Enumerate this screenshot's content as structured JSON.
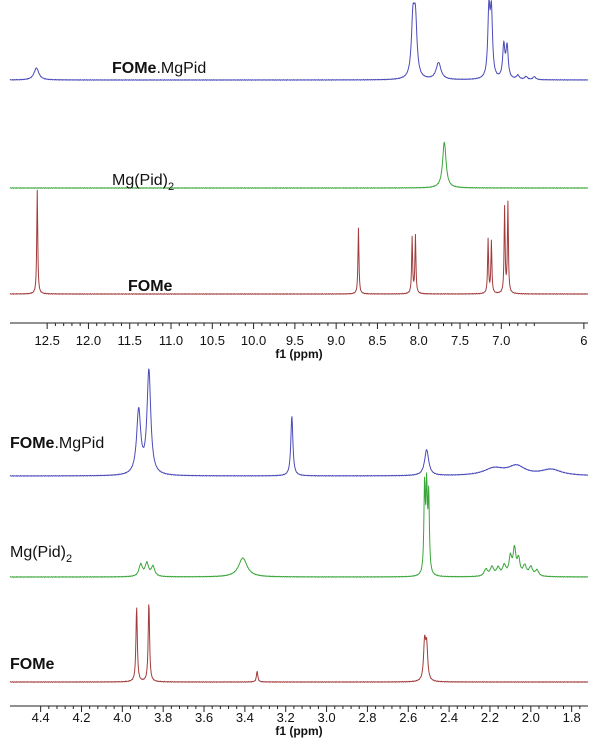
{
  "chart_data": [
    {
      "type": "line",
      "title": "",
      "xlabel": "f1 (ppm)",
      "xlim": [
        12.95,
        5.95
      ],
      "x_reversed": true,
      "ticks": [
        "12.5",
        "12.0",
        "11.5",
        "11.0",
        "10.5",
        "10.0",
        "9.5",
        "9.0",
        "8.5",
        "8.0",
        "7.5",
        "7.0",
        "6"
      ],
      "series": [
        {
          "label_bold": "FOMe",
          "label_rest": ".MgPid",
          "label_sub": "",
          "color": "#4b4bbb",
          "peaks": [
            {
              "x": 12.63,
              "h": 12,
              "w": 0.035
            },
            {
              "x": 8.07,
              "h": 56,
              "w": 0.022
            },
            {
              "x": 8.04,
              "h": 55,
              "w": 0.022
            },
            {
              "x": 7.76,
              "h": 17,
              "w": 0.035
            },
            {
              "x": 7.15,
              "h": 66,
              "w": 0.016
            },
            {
              "x": 7.12,
              "h": 64,
              "w": 0.016
            },
            {
              "x": 6.97,
              "h": 33,
              "w": 0.016
            },
            {
              "x": 6.93,
              "h": 32,
              "w": 0.016
            },
            {
              "x": 6.8,
              "h": 4,
              "w": 0.02
            },
            {
              "x": 6.7,
              "h": 3,
              "w": 0.02
            },
            {
              "x": 6.6,
              "h": 3,
              "w": 0.02
            }
          ]
        },
        {
          "label_bold": "",
          "label_rest": "Mg(Pid)",
          "label_sub": "2",
          "color": "#3aa63a",
          "peaks": [
            {
              "x": 7.69,
              "h": 46,
              "w": 0.025
            }
          ]
        },
        {
          "label_bold": "FOMe",
          "label_rest": "",
          "label_sub": "",
          "color": "#a23c3c",
          "peaks": [
            {
              "x": 12.62,
              "h": 104,
              "w": 0.007
            },
            {
              "x": 8.73,
              "h": 66,
              "w": 0.007
            },
            {
              "x": 8.08,
              "h": 56,
              "w": 0.007
            },
            {
              "x": 8.04,
              "h": 58,
              "w": 0.007
            },
            {
              "x": 7.16,
              "h": 54,
              "w": 0.007
            },
            {
              "x": 7.12,
              "h": 52,
              "w": 0.007
            },
            {
              "x": 6.96,
              "h": 86,
              "w": 0.007
            },
            {
              "x": 6.92,
              "h": 90,
              "w": 0.007
            }
          ]
        }
      ]
    },
    {
      "type": "line",
      "title": "",
      "xlabel": "f1 (ppm)",
      "xlim": [
        4.55,
        1.72
      ],
      "x_reversed": true,
      "ticks": [
        "4.4",
        "4.2",
        "4.0",
        "3.8",
        "3.6",
        "3.4",
        "3.2",
        "3.0",
        "2.8",
        "2.6",
        "2.4",
        "2.2",
        "2.0",
        "1.8"
      ],
      "series": [
        {
          "label_bold": "FOMe",
          "label_rest": ".MgPid",
          "label_sub": "",
          "color": "#4b4bbb",
          "peaks": [
            {
              "x": 3.92,
              "h": 64,
              "w": 0.012
            },
            {
              "x": 3.87,
              "h": 104,
              "w": 0.011
            },
            {
              "x": 3.17,
              "h": 60,
              "w": 0.006
            },
            {
              "x": 2.51,
              "h": 26,
              "w": 0.012
            },
            {
              "x": 2.18,
              "h": 7,
              "w": 0.06
            },
            {
              "x": 2.07,
              "h": 9,
              "w": 0.05
            },
            {
              "x": 1.9,
              "h": 6,
              "w": 0.06
            }
          ]
        },
        {
          "label_bold": "",
          "label_rest": "Mg(Pid)",
          "label_sub": "2",
          "color": "#3aa63a",
          "peaks": [
            {
              "x": 3.91,
              "h": 12,
              "w": 0.01
            },
            {
              "x": 3.88,
              "h": 13,
              "w": 0.01
            },
            {
              "x": 3.85,
              "h": 10,
              "w": 0.01
            },
            {
              "x": 3.41,
              "h": 19,
              "w": 0.025
            },
            {
              "x": 2.52,
              "h": 88,
              "w": 0.004
            },
            {
              "x": 2.51,
              "h": 82,
              "w": 0.004
            },
            {
              "x": 2.5,
              "h": 76,
              "w": 0.004
            },
            {
              "x": 2.22,
              "h": 7,
              "w": 0.01
            },
            {
              "x": 2.19,
              "h": 9,
              "w": 0.01
            },
            {
              "x": 2.16,
              "h": 8,
              "w": 0.01
            },
            {
              "x": 2.13,
              "h": 10,
              "w": 0.01
            },
            {
              "x": 2.1,
              "h": 18,
              "w": 0.008
            },
            {
              "x": 2.08,
              "h": 26,
              "w": 0.008
            },
            {
              "x": 2.06,
              "h": 16,
              "w": 0.008
            },
            {
              "x": 2.03,
              "h": 10,
              "w": 0.01
            },
            {
              "x": 2.0,
              "h": 9,
              "w": 0.01
            },
            {
              "x": 1.97,
              "h": 6,
              "w": 0.01
            }
          ]
        },
        {
          "label_bold": "FOMe",
          "label_rest": "",
          "label_sub": "",
          "color": "#a23c3c",
          "peaks": [
            {
              "x": 3.93,
              "h": 75,
              "w": 0.004
            },
            {
              "x": 3.87,
              "h": 80,
              "w": 0.004
            },
            {
              "x": 3.34,
              "h": 11,
              "w": 0.004
            },
            {
              "x": 2.52,
              "h": 38,
              "w": 0.006
            },
            {
              "x": 2.51,
              "h": 34,
              "w": 0.006
            }
          ]
        }
      ]
    }
  ]
}
